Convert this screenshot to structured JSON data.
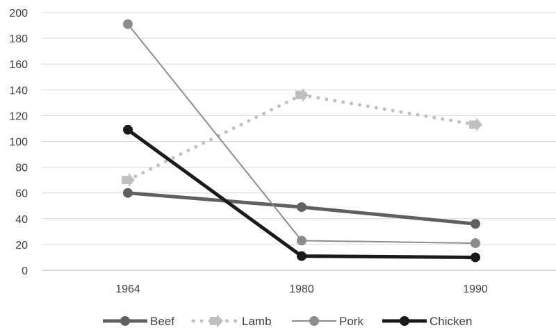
{
  "chart_data": {
    "type": "line",
    "title": "",
    "xlabel": "",
    "ylabel": "",
    "categories": [
      "1964",
      "1980",
      "1990"
    ],
    "ylim": [
      0,
      200
    ],
    "yticks": [
      0,
      20,
      40,
      60,
      80,
      100,
      120,
      140,
      160,
      180,
      200
    ],
    "grid": "horizontal",
    "legend_position": "bottom",
    "series": [
      {
        "name": "Beef",
        "values": [
          60,
          49,
          36
        ],
        "color": "#606060",
        "style": "solid-thick",
        "marker": "circle"
      },
      {
        "name": "Lamb",
        "values": [
          70,
          136,
          113
        ],
        "color": "#bfbfbf",
        "style": "dotted",
        "marker": "arrow"
      },
      {
        "name": "Pork",
        "values": [
          191,
          23,
          21
        ],
        "color": "#8c8c8c",
        "style": "solid-thin",
        "marker": "circle"
      },
      {
        "name": "Chicken",
        "values": [
          109,
          11,
          10
        ],
        "color": "#1a1a1a",
        "style": "solid-thick",
        "marker": "circle"
      }
    ]
  }
}
